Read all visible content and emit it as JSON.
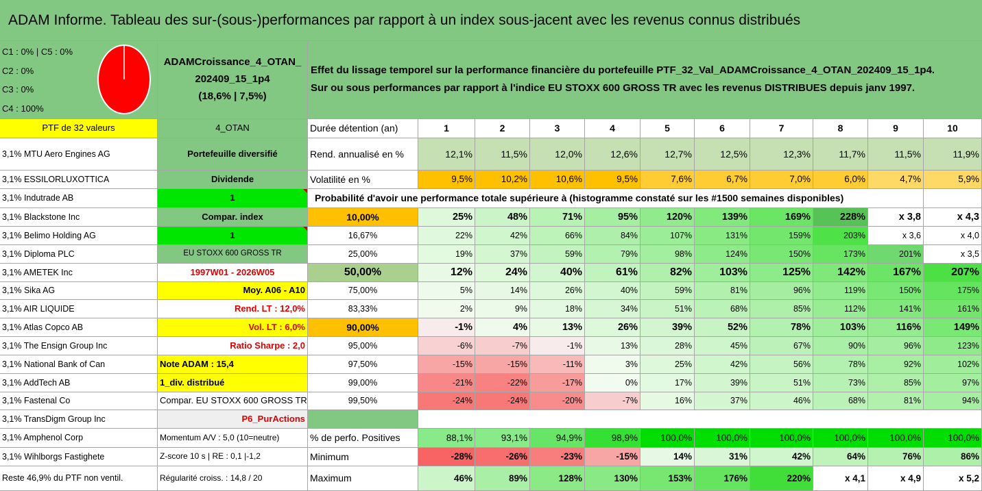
{
  "title": "ADAM Informe. Tableau des sur-(sous-)performances par rapport à un index sous-jacent avec les revenus connus distribués",
  "legend": {
    "c1_c5": "C1 : 0% | C5 : 0%",
    "c2": "C2 : 0%",
    "c3": "C3 : 0%",
    "c4": "C4 : 100%",
    "pie_color": "#ff0000"
  },
  "portfolio": {
    "name_line1": "ADAMCroissance_4_OTAN_",
    "name_line2": "202409_15_1p4",
    "name_line3": "(18,6% | 7,5%)"
  },
  "description": {
    "line1": "Effet du lissage temporel sur la performance financière du portefeuille PTF_32_Val_ADAMCroissance_4_OTAN_202409_15_1p4.",
    "line2": "Sur ou sous performances par rapport à l'indice EU STOXX 600 GROSS TR avec les revenus DISTRIBUES depuis janv 1997."
  },
  "holdings_header": "PTF de 32 valeurs",
  "holdings": [
    "3,1% MTU Aero Engines AG",
    "3,1% ESSILORLUXOTTICA",
    "3,1% Indutrade AB",
    "3,1% Blackstone Inc",
    "3,1% Belimo Holding AG",
    "3,1% Diploma PLC",
    "3,1% AMETEK Inc",
    "3,1% Sika AG",
    "3,1% AIR LIQUIDE",
    "3,1% Atlas Copco AB",
    "3,1% The Ensign Group Inc",
    "3,1% National Bank of Can",
    "3,1% AddTech AB",
    "3,1% Fastenal Co",
    "3,1% TransDigm Group Inc",
    "3,1% Amphenol Corp",
    "3,1% Wihlborgs Fastighete",
    "Reste 46,9% du PTF non ventil."
  ],
  "info": {
    "otan": "4_OTAN",
    "portefeuille": "Portefeuille diversifié",
    "dividende": "Dividende",
    "one_a": "1",
    "compar_index": "Compar. index",
    "one_b": "1",
    "index_name": "EU STOXX 600 GROSS TR",
    "period": "1997W01 - 2026W05",
    "moy": "Moy. A06 - A10",
    "rend_lt": "Rend. LT : 12,0%",
    "vol_lt": "Vol. LT : 6,0%",
    "sharpe": "Ratio Sharpe : 2,0",
    "note": "Note ADAM : 15,4",
    "div": "1_div. distribué",
    "compar_eu": "Compar. EU STOXX 600 GROSS TR",
    "p6": "P6_PurActions",
    "momentum": "Momentum A/V : 5,0 (10=neutre)",
    "zscore": "Z-score 10 s | RE : 0,1 |-1,2",
    "regularite": "Régularité croiss. : 14,8 / 20"
  },
  "years_label": "Durée détention (an)",
  "years": [
    "1",
    "2",
    "3",
    "4",
    "5",
    "6",
    "7",
    "8",
    "9",
    "10"
  ],
  "rend_label": "Rend. annualisé en %",
  "rend": [
    "12,1%",
    "11,5%",
    "12,0%",
    "12,6%",
    "12,7%",
    "12,5%",
    "12,3%",
    "11,7%",
    "11,5%",
    "11,9%"
  ],
  "vol_label": "Volatilité en %",
  "vol": [
    "9,5%",
    "10,2%",
    "10,6%",
    "9,5%",
    "7,6%",
    "6,7%",
    "7,0%",
    "6,0%",
    "4,7%",
    "5,9%"
  ],
  "prob_title": "Probabilité d'avoir une performance totale supérieure à (histogramme constaté sur les #1500 semaines disponibles)",
  "prob_rows": [
    {
      "p": "10,00%",
      "v": [
        "25%",
        "48%",
        "71%",
        "95%",
        "120%",
        "139%",
        "169%",
        "228%",
        "x 3,8",
        "x 4,3"
      ]
    },
    {
      "p": "16,67%",
      "v": [
        "22%",
        "42%",
        "66%",
        "84%",
        "107%",
        "131%",
        "159%",
        "203%",
        "x 3,6",
        "x 4,0"
      ]
    },
    {
      "p": "25,00%",
      "v": [
        "19%",
        "37%",
        "59%",
        "79%",
        "98%",
        "124%",
        "150%",
        "173%",
        "201%",
        "x 3,5"
      ]
    },
    {
      "p": "50,00%",
      "v": [
        "12%",
        "24%",
        "40%",
        "61%",
        "82%",
        "103%",
        "125%",
        "142%",
        "167%",
        "207%"
      ]
    },
    {
      "p": "75,00%",
      "v": [
        "5%",
        "14%",
        "26%",
        "40%",
        "59%",
        "81%",
        "96%",
        "119%",
        "150%",
        "175%"
      ]
    },
    {
      "p": "83,33%",
      "v": [
        "2%",
        "9%",
        "18%",
        "34%",
        "51%",
        "68%",
        "85%",
        "112%",
        "141%",
        "161%"
      ]
    },
    {
      "p": "90,00%",
      "v": [
        "-1%",
        "4%",
        "13%",
        "26%",
        "39%",
        "52%",
        "78%",
        "103%",
        "116%",
        "149%"
      ]
    },
    {
      "p": "95,00%",
      "v": [
        "-6%",
        "-7%",
        "-1%",
        "13%",
        "28%",
        "45%",
        "67%",
        "90%",
        "96%",
        "123%"
      ]
    },
    {
      "p": "97,50%",
      "v": [
        "-15%",
        "-15%",
        "-11%",
        "3%",
        "25%",
        "42%",
        "56%",
        "78%",
        "92%",
        "102%"
      ]
    },
    {
      "p": "99,00%",
      "v": [
        "-21%",
        "-22%",
        "-17%",
        "0%",
        "17%",
        "39%",
        "51%",
        "73%",
        "85%",
        "97%"
      ]
    },
    {
      "p": "99,50%",
      "v": [
        "-24%",
        "-24%",
        "-20%",
        "-7%",
        "16%",
        "37%",
        "46%",
        "68%",
        "81%",
        "94%"
      ]
    }
  ],
  "pos_label": "% de perfo. Positives",
  "pos": [
    "88,1%",
    "93,1%",
    "94,9%",
    "98,9%",
    "100,0%",
    "100,0%",
    "100,0%",
    "100,0%",
    "100,0%",
    "100,0%"
  ],
  "min_label": "Minimum",
  "min": [
    "-28%",
    "-26%",
    "-23%",
    "-15%",
    "14%",
    "31%",
    "42%",
    "64%",
    "76%",
    "86%"
  ],
  "max_label": "Maximum",
  "max": [
    "46%",
    "89%",
    "128%",
    "130%",
    "153%",
    "176%",
    "220%",
    "x 4,1",
    "x 4,9",
    "x 5,2"
  ],
  "colors": {
    "header_green": "#82c882",
    "mid_green": "#70b870",
    "bright_green": "#00e600",
    "yellow": "#ffff00",
    "orange": "#ffc000",
    "neg_pink": "#f4a6a6",
    "neg_red": "#f08080"
  }
}
